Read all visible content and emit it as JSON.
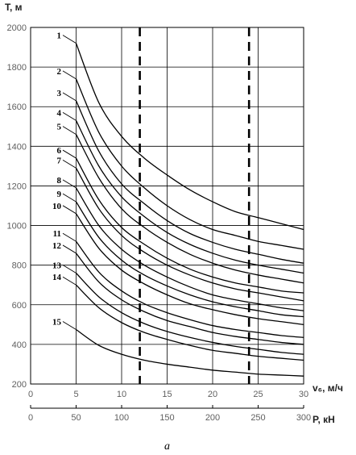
{
  "chart_data": {
    "type": "line",
    "ylabel": "T, м",
    "xlabel": "v₆, м/ч",
    "x2label": "P, кН",
    "caption": "a",
    "xlim": [
      0,
      30
    ],
    "ylim": [
      200,
      2000
    ],
    "x2lim": [
      0,
      300
    ],
    "xticks": [
      "0",
      "5",
      "10",
      "15",
      "20",
      "25",
      "30"
    ],
    "yticks": [
      "200",
      "400",
      "600",
      "800",
      "1000",
      "1200",
      "1400",
      "1600",
      "1800",
      "2000"
    ],
    "x2ticks": [
      "0",
      "50",
      "100",
      "150",
      "200",
      "250",
      "300"
    ],
    "grid": {
      "horizontal": true,
      "vertical": true
    },
    "reference_lines_x": [
      12,
      24
    ],
    "x": [
      5,
      7.5,
      10,
      12.5,
      15,
      17.5,
      20,
      22.5,
      25,
      27.5,
      30
    ],
    "series": [
      {
        "name": "1",
        "values": [
          1920,
          1620,
          1450,
          1340,
          1255,
          1180,
          1120,
          1070,
          1040,
          1010,
          980
        ]
      },
      {
        "name": "2",
        "values": [
          1740,
          1470,
          1300,
          1190,
          1100,
          1030,
          980,
          950,
          920,
          900,
          880
        ]
      },
      {
        "name": "3",
        "values": [
          1630,
          1375,
          1210,
          1110,
          1025,
          960,
          915,
          880,
          855,
          830,
          810
        ]
      },
      {
        "name": "4",
        "values": [
          1530,
          1300,
          1145,
          1045,
          965,
          905,
          860,
          825,
          800,
          780,
          760
        ]
      },
      {
        "name": "5",
        "values": [
          1460,
          1240,
          1085,
          990,
          915,
          855,
          810,
          775,
          750,
          730,
          710
        ]
      },
      {
        "name": "6",
        "values": [
          1340,
          1130,
          990,
          905,
          835,
          780,
          740,
          710,
          690,
          670,
          660
        ]
      },
      {
        "name": "7",
        "values": [
          1290,
          1085,
          950,
          865,
          800,
          750,
          710,
          680,
          660,
          640,
          620
        ]
      },
      {
        "name": "8",
        "values": [
          1190,
          1000,
          880,
          800,
          740,
          690,
          650,
          625,
          605,
          585,
          570
        ]
      },
      {
        "name": "9",
        "values": [
          1120,
          940,
          825,
          750,
          695,
          650,
          615,
          590,
          570,
          550,
          540
        ]
      },
      {
        "name": "10",
        "values": [
          1060,
          885,
          775,
          705,
          650,
          605,
          575,
          550,
          530,
          515,
          500
        ]
      },
      {
        "name": "11",
        "values": [
          920,
          765,
          670,
          605,
          560,
          525,
          495,
          475,
          460,
          445,
          435
        ]
      },
      {
        "name": "12",
        "values": [
          860,
          715,
          625,
          565,
          520,
          490,
          460,
          440,
          425,
          410,
          400
        ]
      },
      {
        "name": "13",
        "values": [
          760,
          640,
          560,
          505,
          465,
          435,
          410,
          390,
          375,
          360,
          350
        ]
      },
      {
        "name": "14",
        "values": [
          700,
          585,
          510,
          460,
          425,
          395,
          370,
          355,
          340,
          330,
          320
        ]
      },
      {
        "name": "15",
        "values": [
          475,
          395,
          350,
          320,
          300,
          285,
          270,
          260,
          250,
          245,
          240
        ]
      }
    ]
  }
}
